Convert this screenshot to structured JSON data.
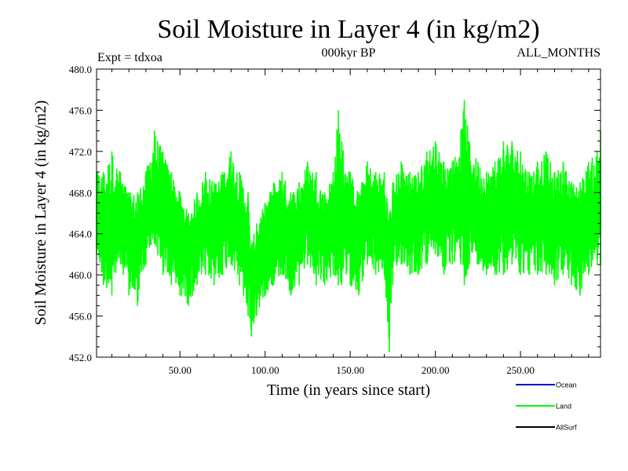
{
  "chart_data": {
    "type": "line",
    "title": "Soil Moisture in Layer 4 (in kg/m2)",
    "subtitle": "000kyr BP",
    "annotation_left": "Expt = tdxoa",
    "annotation_right": "ALL_MONTHS",
    "xlabel": "Time (in years since start)",
    "ylabel": "Soil Moisture in Layer 4 (in kg/m2)",
    "xlim": [
      1,
      297
    ],
    "ylim": [
      452.0,
      480.0
    ],
    "xticks": [
      50,
      100,
      150,
      200,
      250
    ],
    "xtick_labels": [
      "50.00",
      "100.00",
      "150.00",
      "200.00",
      "250.00"
    ],
    "yticks": [
      452,
      456,
      460,
      464,
      468,
      472,
      476,
      480
    ],
    "ytick_labels": [
      "452.0",
      "456.0",
      "460.0",
      "464.0",
      "468.0",
      "472.0",
      "476.0",
      "480.0"
    ],
    "grid": false,
    "legend_placement": "bottom-right",
    "series": [
      {
        "name": "Land",
        "color": "#00ff00",
        "x": [
          1,
          5,
          10,
          15,
          20,
          25,
          30,
          35,
          40,
          45,
          50,
          55,
          60,
          65,
          70,
          75,
          80,
          85,
          90,
          92,
          95,
          100,
          105,
          110,
          115,
          120,
          125,
          130,
          135,
          140,
          143,
          145,
          150,
          155,
          160,
          165,
          170,
          173,
          175,
          180,
          185,
          190,
          195,
          200,
          205,
          210,
          215,
          217,
          220,
          225,
          230,
          235,
          240,
          245,
          250,
          255,
          260,
          265,
          270,
          275,
          280,
          285,
          290,
          295,
          297
        ],
        "y": [
          466.5,
          464.8,
          465.2,
          466.0,
          463.5,
          463.2,
          466.0,
          467.5,
          466.2,
          465.0,
          463.5,
          462.5,
          463.8,
          465.3,
          464.5,
          465.5,
          466.8,
          465.2,
          462.5,
          459.0,
          461.0,
          463.0,
          464.5,
          465.5,
          463.8,
          464.2,
          466.2,
          465.0,
          464.0,
          465.5,
          467.0,
          466.0,
          465.0,
          464.0,
          466.0,
          465.5,
          465.0,
          461.0,
          464.5,
          466.5,
          465.8,
          465.5,
          467.0,
          467.5,
          466.0,
          466.5,
          467.5,
          468.5,
          467.0,
          466.2,
          465.5,
          465.8,
          466.8,
          467.0,
          466.5,
          465.5,
          466.0,
          466.5,
          465.0,
          465.8,
          464.5,
          464.5,
          465.8,
          466.5,
          467.0
        ]
      }
    ],
    "band_high": [
      470,
      470,
      472,
      470,
      468,
      468,
      470,
      474,
      472,
      470,
      468,
      466,
      468,
      470,
      469,
      470,
      472,
      470,
      468,
      463,
      465,
      467,
      469,
      470,
      468,
      469,
      471,
      470,
      468,
      470,
      476,
      473,
      470,
      468,
      471,
      470,
      470,
      466,
      469,
      471,
      470,
      470,
      472,
      473,
      471,
      471,
      474,
      477,
      473,
      471,
      470,
      471,
      473,
      473,
      472,
      470,
      471,
      472,
      470,
      471,
      469,
      469,
      471,
      472,
      474
    ],
    "band_low": [
      462,
      459,
      458,
      461,
      458,
      457,
      461,
      463,
      460,
      459,
      458,
      457,
      459,
      460,
      459,
      460,
      461,
      459,
      456,
      454,
      456,
      458,
      459,
      460,
      458,
      459,
      461,
      459,
      459,
      460,
      459,
      459,
      459,
      458,
      461,
      460,
      460,
      452.5,
      459,
      461,
      460,
      460,
      461,
      462,
      460,
      461,
      461,
      459,
      461,
      461,
      460,
      460,
      460,
      461,
      460,
      460,
      460,
      460,
      459,
      460,
      459,
      458,
      460,
      461,
      461
    ]
  },
  "legend": {
    "items": [
      {
        "label": "Ocean",
        "color": "#0000cc"
      },
      {
        "label": "Land",
        "color": "#00ff00"
      },
      {
        "label": "AllSurf",
        "color": "#000000"
      }
    ]
  }
}
